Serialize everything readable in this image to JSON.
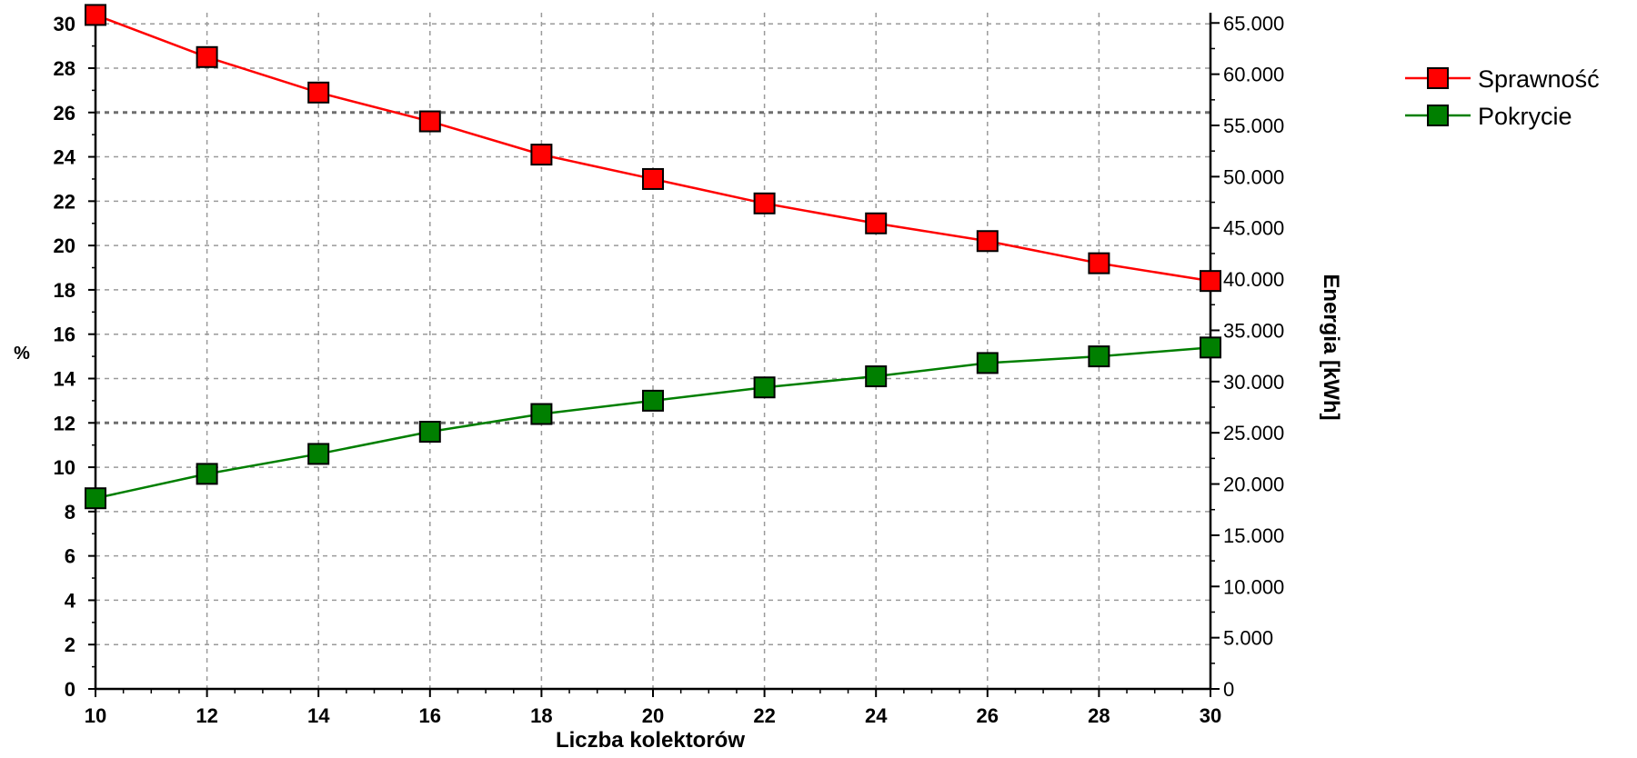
{
  "chart_data": {
    "type": "line",
    "xlabel": "Liczba kolektorów",
    "ylabel_left": "%",
    "ylabel_right": "Energia [kWh]",
    "x": [
      10,
      12,
      14,
      16,
      18,
      20,
      22,
      24,
      26,
      28,
      30
    ],
    "x_ticks": [
      "10",
      "12",
      "14",
      "16",
      "18",
      "20",
      "22",
      "24",
      "26",
      "28",
      "30"
    ],
    "xlim": [
      10,
      30
    ],
    "ylim_left": [
      0,
      30.5
    ],
    "y_left_ticks": [
      "0",
      "2",
      "4",
      "6",
      "8",
      "10",
      "12",
      "14",
      "16",
      "18",
      "20",
      "22",
      "24",
      "26",
      "28",
      "30"
    ],
    "ylim_right": [
      0,
      66000
    ],
    "y_right_ticks": [
      "0",
      "5.000",
      "10.000",
      "15.000",
      "20.000",
      "25.000",
      "30.000",
      "35.000",
      "40.000",
      "45.000",
      "50.000",
      "55.000",
      "60.000",
      "65.000"
    ],
    "grid": true,
    "legend_position": "right",
    "series": [
      {
        "name": "Sprawność",
        "color": "#ff0000",
        "marker": "square",
        "values": [
          30.4,
          28.5,
          26.9,
          25.6,
          24.1,
          23.0,
          21.9,
          21.0,
          20.2,
          19.2,
          18.4
        ]
      },
      {
        "name": "Pokrycie",
        "color": "#007f00",
        "marker": "square",
        "values": [
          8.6,
          9.7,
          10.6,
          11.6,
          12.4,
          13.0,
          13.6,
          14.1,
          14.7,
          15.0,
          15.4
        ]
      }
    ]
  }
}
